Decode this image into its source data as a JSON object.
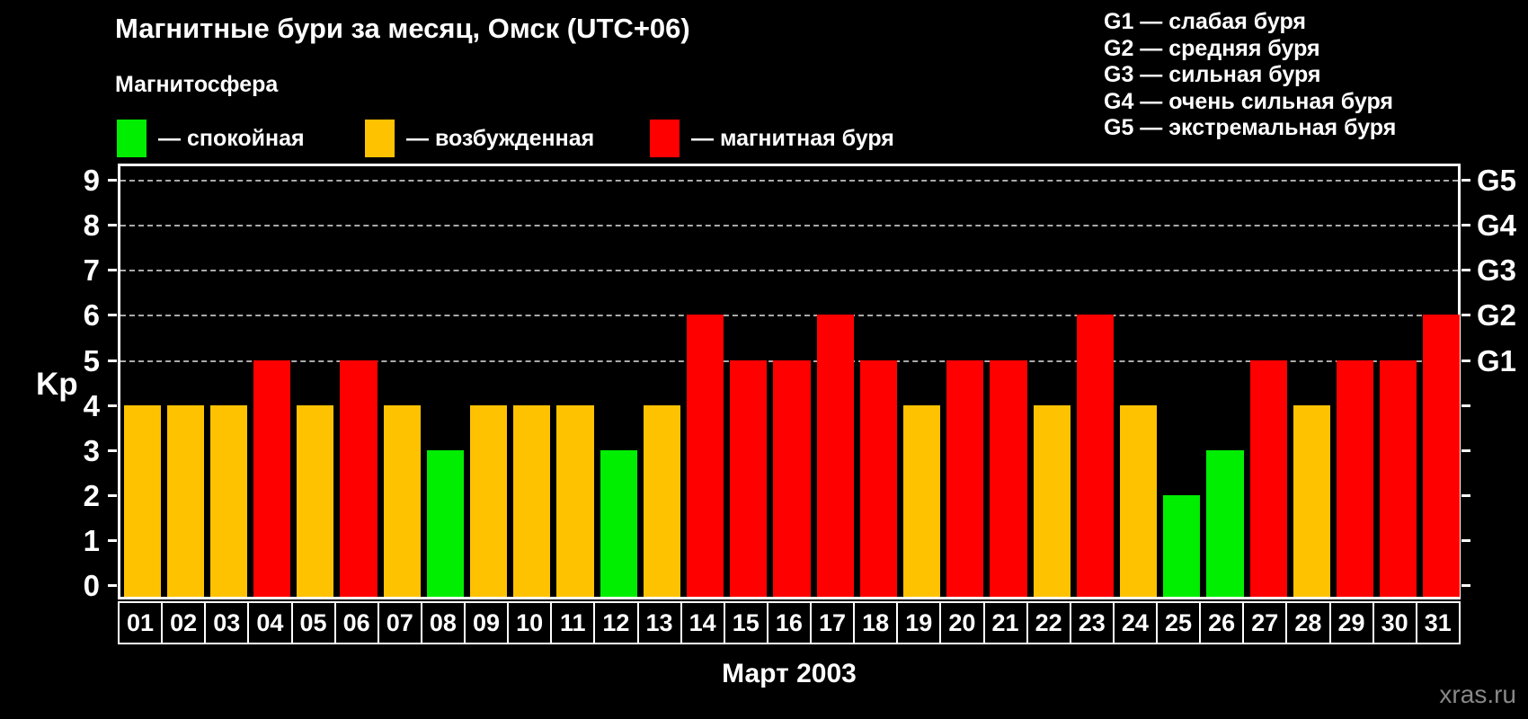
{
  "title": "Магнитные бури за месяц, Омск (UTC+06)",
  "legend": {
    "title": "Магнитосфера",
    "items": [
      {
        "name": "quiet",
        "label": "— спокойная",
        "color": "#00ee00"
      },
      {
        "name": "excited",
        "label": "— возбужденная",
        "color": "#ffc200"
      },
      {
        "name": "storm",
        "label": "— магнитная буря",
        "color": "#ff0000"
      }
    ]
  },
  "g_legend": [
    "G1 — слабая буря",
    "G2 — средняя буря",
    "G3 — сильная буря",
    "G4 — очень сильная буря",
    "G5 — экстремальная буря"
  ],
  "axis": {
    "y_label": "Kp",
    "x_label": "Март 2003"
  },
  "watermark": "xras.ru",
  "colors": {
    "background": "#000000",
    "axis": "#ffffff",
    "grid": "#aaaaaa",
    "watermark": "#888888"
  },
  "chart_data": {
    "type": "bar",
    "title": "Магнитные бури за месяц, Омск (UTC+06)",
    "xlabel": "Март 2003",
    "ylabel": "Kp",
    "ylim": [
      0,
      9
    ],
    "yticks": [
      0,
      1,
      2,
      3,
      4,
      5,
      6,
      7,
      8,
      9
    ],
    "gridlines_at": [
      5,
      6,
      7,
      8,
      9
    ],
    "grid_style": "dashed",
    "legend_position": "top",
    "right_axis_labels": {
      "5": "G1",
      "6": "G2",
      "7": "G3",
      "8": "G4",
      "9": "G5"
    },
    "categories": [
      "01",
      "02",
      "03",
      "04",
      "05",
      "06",
      "07",
      "08",
      "09",
      "10",
      "11",
      "12",
      "13",
      "14",
      "15",
      "16",
      "17",
      "18",
      "19",
      "20",
      "21",
      "22",
      "23",
      "24",
      "25",
      "26",
      "27",
      "28",
      "29",
      "30",
      "31"
    ],
    "values": [
      4,
      4,
      4,
      5,
      4,
      5,
      4,
      3,
      4,
      4,
      4,
      3,
      4,
      6,
      5,
      5,
      6,
      5,
      4,
      5,
      5,
      4,
      6,
      4,
      2,
      3,
      5,
      4,
      5,
      5,
      6
    ],
    "color_rule": {
      "quiet_kp_max": 3,
      "excited_kp": 4,
      "storm_kp_min": 5
    }
  }
}
